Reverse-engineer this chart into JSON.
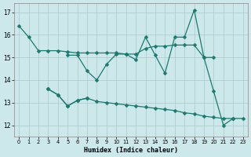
{
  "xlabel": "Humidex (Indice chaleur)",
  "xlim": [
    -0.5,
    23.5
  ],
  "ylim": [
    11.5,
    17.4
  ],
  "yticks": [
    12,
    13,
    14,
    15,
    16,
    17
  ],
  "xticks": [
    0,
    1,
    2,
    3,
    4,
    5,
    6,
    7,
    8,
    9,
    10,
    11,
    12,
    13,
    14,
    15,
    16,
    17,
    18,
    19,
    20,
    21,
    22,
    23
  ],
  "bg_color": "#cce8eb",
  "grid_color": "#aac8cc",
  "line_color": "#1a7a6e",
  "line1_y": [
    16.4,
    15.9,
    15.3,
    15.3,
    15.3,
    15.25,
    15.2,
    15.2,
    15.2,
    15.2,
    15.2,
    15.15,
    15.15,
    15.4,
    15.5,
    15.5,
    15.55,
    15.55,
    15.55,
    15.0,
    15.0,
    null,
    null,
    null
  ],
  "line2_y": [
    null,
    null,
    null,
    null,
    null,
    15.1,
    15.1,
    14.4,
    14.0,
    14.7,
    15.15,
    15.15,
    14.9,
    15.9,
    15.1,
    14.3,
    15.9,
    15.9,
    17.1,
    15.0,
    13.5,
    12.0,
    12.3,
    null
  ],
  "line3_y": [
    null,
    null,
    null,
    13.6,
    13.35,
    12.85,
    13.1,
    13.2,
    null,
    null,
    null,
    null,
    null,
    null,
    null,
    null,
    null,
    null,
    null,
    null,
    null,
    null,
    null,
    null
  ],
  "line4_y": [
    null,
    null,
    null,
    13.6,
    13.35,
    12.85,
    13.1,
    13.2,
    13.05,
    13.0,
    12.95,
    12.9,
    12.85,
    12.8,
    12.75,
    12.7,
    12.65,
    12.55,
    12.5,
    12.4,
    12.35,
    12.3,
    12.3,
    12.3
  ]
}
